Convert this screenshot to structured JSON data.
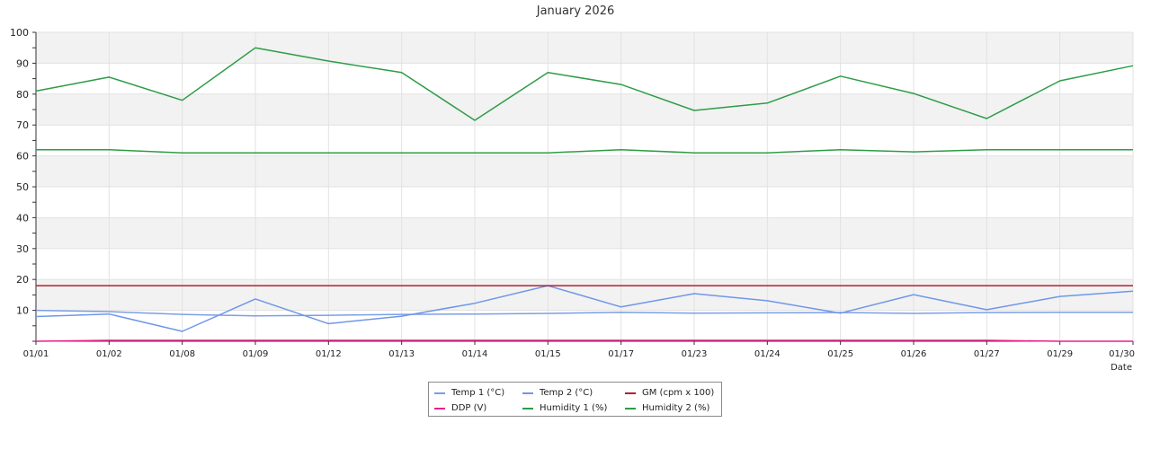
{
  "chart_data": {
    "type": "line",
    "title": "January 2026",
    "xlabel": "Date",
    "ylabel": "",
    "ylim": [
      0,
      100
    ],
    "yticks": [
      10,
      20,
      30,
      40,
      50,
      60,
      70,
      80,
      90,
      100
    ],
    "grid": true,
    "legend_position": "bottom-center",
    "categories": [
      "01/01",
      "01/02",
      "01/08",
      "01/09",
      "01/12",
      "01/13",
      "01/14",
      "01/15",
      "01/17",
      "01/23",
      "01/24",
      "01/25",
      "01/26",
      "01/27",
      "01/29",
      "01/30"
    ],
    "series": [
      {
        "name": "Temp 1 (°C)",
        "color": "#7b9ee6",
        "values": [
          10,
          9.6,
          8.7,
          8.2,
          8.4,
          8.7,
          8.8,
          9.0,
          9.4,
          9.1,
          9.2,
          9.3,
          9.0,
          9.3,
          9.4,
          9.4
        ]
      },
      {
        "name": "Temp 2 (°C)",
        "color": "#6f97e8",
        "values": [
          8,
          8.8,
          3.2,
          13.7,
          5.7,
          8.1,
          12.3,
          18.0,
          11.1,
          15.4,
          13.1,
          9.1,
          15.1,
          10.2,
          14.5,
          16.2
        ]
      },
      {
        "name": "GM (cpm x 100)",
        "color": "#b22030",
        "values": [
          18,
          18,
          18,
          18,
          18,
          18,
          18,
          18,
          18,
          18,
          18,
          18,
          18,
          18,
          18,
          18
        ]
      },
      {
        "name": "DDP (V)",
        "color": "#e8208a",
        "values": [
          0,
          0.3,
          0.3,
          0.3,
          0.3,
          0.3,
          0.3,
          0.3,
          0.3,
          0.3,
          0.3,
          0.3,
          0.3,
          0.3,
          0,
          0
        ]
      },
      {
        "name": "Humidity 1 (%)",
        "color": "#2e9c46",
        "values": [
          81,
          85.5,
          78,
          95,
          90.7,
          87,
          71.5,
          87,
          83.1,
          74.7,
          77.1,
          85.8,
          80.2,
          72.1,
          84.3,
          89.2
        ]
      },
      {
        "name": "Humidity 2 (%)",
        "color": "#2e9c46",
        "values": [
          62,
          62,
          61,
          61,
          61,
          61,
          61,
          61,
          62,
          61,
          61,
          62,
          61.3,
          62,
          62,
          62
        ]
      }
    ]
  }
}
